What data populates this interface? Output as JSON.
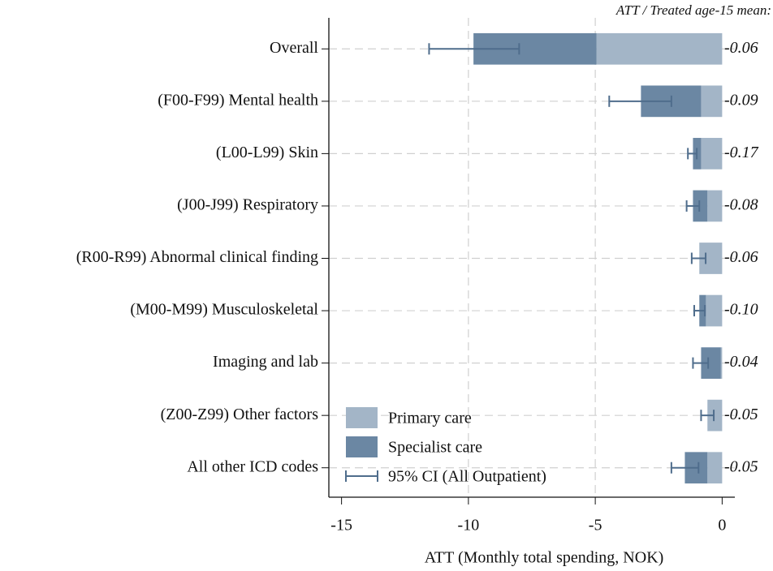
{
  "chart_data": {
    "type": "stacked-barh",
    "annotation_title": "ATT / Treated age-15 mean:",
    "xlabel": "ATT (Monthly total spending, NOK)",
    "categories": [
      "Overall",
      "(F00-F99) Mental health",
      "(L00-L99) Skin",
      "(J00-J99) Respiratory",
      "(R00-R99) Abnormal clinical finding",
      "(M00-M99) Musculoskeletal",
      "Imaging and lab",
      "(Z00-Z99) Other factors",
      "All other ICD codes"
    ],
    "series": [
      {
        "name": "Primary care",
        "color": "#a3b5c7",
        "values": [
          -4.95,
          -0.83,
          -0.83,
          -0.58,
          -0.9,
          -0.64,
          -0.05,
          -0.58,
          -0.58
        ]
      },
      {
        "name": "Specialist care",
        "color": "#6b87a3",
        "values": [
          -4.85,
          -2.37,
          -0.32,
          -0.57,
          0,
          -0.26,
          -0.78,
          0,
          -0.89
        ]
      }
    ],
    "ci": {
      "name": "95% CI (All Outpatient)",
      "color": "#4f6d8c",
      "low": [
        -11.55,
        -4.45,
        -1.35,
        -1.4,
        -1.2,
        -1.1,
        -1.15,
        -0.83,
        -2.0
      ],
      "high": [
        -8.0,
        -2.0,
        -1.0,
        -0.9,
        -0.65,
        -0.68,
        -0.55,
        -0.33,
        -0.93
      ]
    },
    "ratio_labels": [
      "-0.06",
      "-0.09",
      "-0.17",
      "-0.08",
      "-0.06",
      "-0.10",
      "-0.04",
      "-0.05",
      "-0.05"
    ],
    "xlim": [
      -15.5,
      0.5
    ],
    "xticks": [
      -15,
      -10,
      -5,
      0
    ],
    "grid": true,
    "legend": "lower left"
  }
}
